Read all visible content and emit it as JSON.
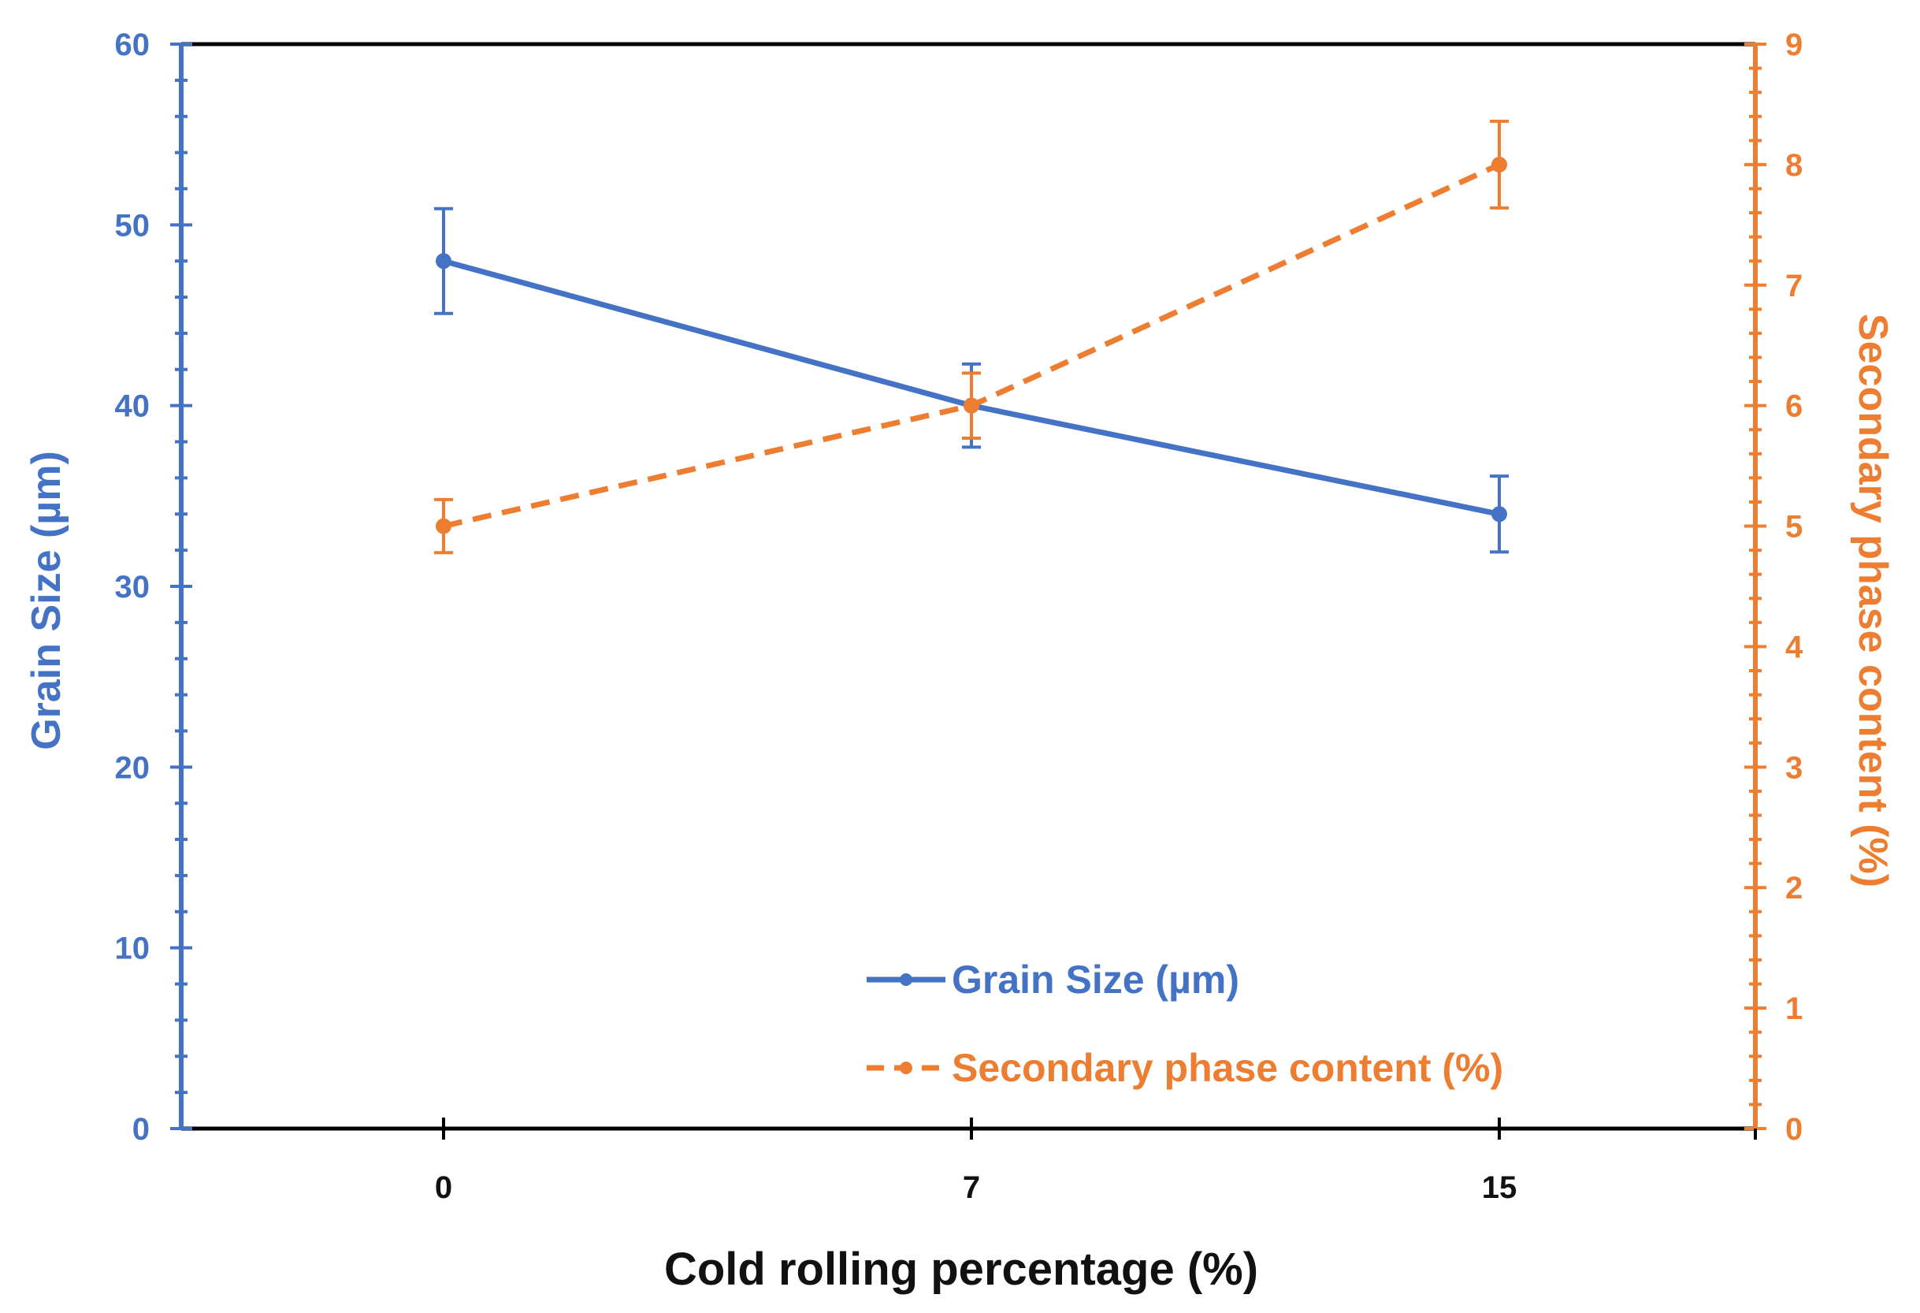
{
  "chart_data": {
    "type": "line",
    "title": "",
    "xlabel": "Cold rolling percentage (%)",
    "ylabel_left": "Grain Size (µm)",
    "ylabel_right": "Secondary phase content (%)",
    "categories": [
      "0",
      "7",
      "15"
    ],
    "y_left": {
      "min": 0,
      "max": 60,
      "major_step": 10,
      "ticks": [
        "0",
        "10",
        "20",
        "30",
        "40",
        "50",
        "60"
      ]
    },
    "y_right": {
      "min": 0,
      "max": 9,
      "major_step": 1,
      "ticks": [
        "0",
        "1",
        "2",
        "3",
        "4",
        "5",
        "6",
        "7",
        "8",
        "9"
      ]
    },
    "grid": false,
    "legend_position": "bottom-center",
    "series": [
      {
        "name": "Grain Size (µm)",
        "axis": "left",
        "color": "#4472c4",
        "line_style": "solid",
        "values": [
          48,
          40,
          34
        ],
        "errors": [
          2.9,
          2.3,
          2.1
        ]
      },
      {
        "name": "Secondary phase content (%)",
        "axis": "right",
        "color": "#ed7d31",
        "line_style": "dashed",
        "values": [
          5.0,
          6.0,
          8.0
        ],
        "errors": [
          0.22,
          0.27,
          0.36
        ]
      }
    ]
  }
}
